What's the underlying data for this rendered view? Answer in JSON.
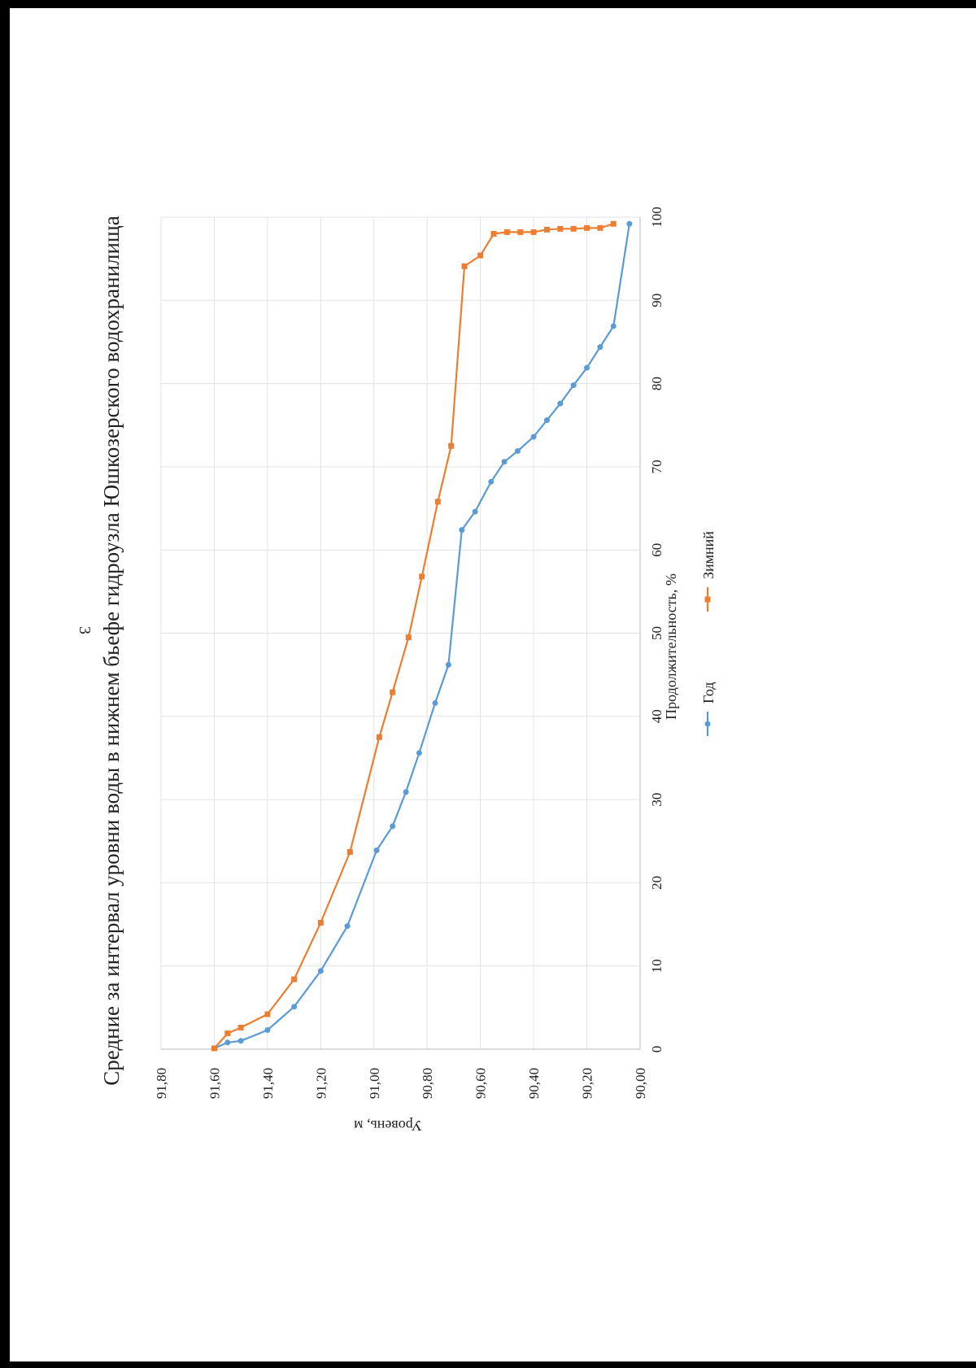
{
  "page_number": "3",
  "chart_data": {
    "type": "line",
    "title": "Средние за интервал уровни воды в нижнем бьефе гидроузла Юшкозерского водохранилища",
    "xlabel": "Продолжительность, %",
    "ylabel": "Уровень, м",
    "xlim": [
      0,
      100
    ],
    "ylim": [
      90.0,
      91.8
    ],
    "x_ticks": [
      "0",
      "10",
      "20",
      "30",
      "40",
      "50",
      "60",
      "70",
      "80",
      "90",
      "100"
    ],
    "y_ticks": [
      "90,00",
      "90,20",
      "90,40",
      "90,60",
      "90,80",
      "91,00",
      "91,20",
      "91,40",
      "91,60",
      "91,80"
    ],
    "grid": true,
    "legend_position": "bottom",
    "orientation": "rotated 90° clockwise on page",
    "series": [
      {
        "name": "Год",
        "color": "#5B9BD5",
        "marker": "circle",
        "points": [
          [
            0.1,
            91.6
          ],
          [
            0.8,
            91.55
          ],
          [
            1.0,
            91.5
          ],
          [
            2.3,
            91.4
          ],
          [
            5.1,
            91.3
          ],
          [
            9.4,
            91.2
          ],
          [
            14.8,
            91.1
          ],
          [
            23.9,
            90.99
          ],
          [
            26.8,
            90.93
          ],
          [
            30.9,
            90.88
          ],
          [
            35.6,
            90.83
          ],
          [
            41.6,
            90.77
          ],
          [
            46.2,
            90.72
          ],
          [
            62.4,
            90.67
          ],
          [
            64.6,
            90.62
          ],
          [
            68.2,
            90.56
          ],
          [
            70.6,
            90.51
          ],
          [
            71.9,
            90.46
          ],
          [
            73.6,
            90.4
          ],
          [
            75.6,
            90.35
          ],
          [
            77.6,
            90.3
          ],
          [
            79.8,
            90.25
          ],
          [
            81.9,
            90.2
          ],
          [
            84.4,
            90.15
          ],
          [
            86.9,
            90.1
          ],
          [
            99.2,
            90.04
          ]
        ]
      },
      {
        "name": "Зимний",
        "color": "#ED7D31",
        "marker": "square",
        "points": [
          [
            0.1,
            91.6
          ],
          [
            1.9,
            91.55
          ],
          [
            2.6,
            91.5
          ],
          [
            4.2,
            91.4
          ],
          [
            8.4,
            91.3
          ],
          [
            15.2,
            91.2
          ],
          [
            23.7,
            91.09
          ],
          [
            37.5,
            90.98
          ],
          [
            42.9,
            90.93
          ],
          [
            49.5,
            90.87
          ],
          [
            56.8,
            90.82
          ],
          [
            65.8,
            90.76
          ],
          [
            72.5,
            90.71
          ],
          [
            94.1,
            90.66
          ],
          [
            95.4,
            90.6
          ],
          [
            98.0,
            90.55
          ],
          [
            98.2,
            90.5
          ],
          [
            98.2,
            90.45
          ],
          [
            98.2,
            90.4
          ],
          [
            98.5,
            90.35
          ],
          [
            98.6,
            90.3
          ],
          [
            98.6,
            90.25
          ],
          [
            98.7,
            90.2
          ],
          [
            98.7,
            90.15
          ],
          [
            99.2,
            90.1
          ]
        ]
      }
    ]
  }
}
